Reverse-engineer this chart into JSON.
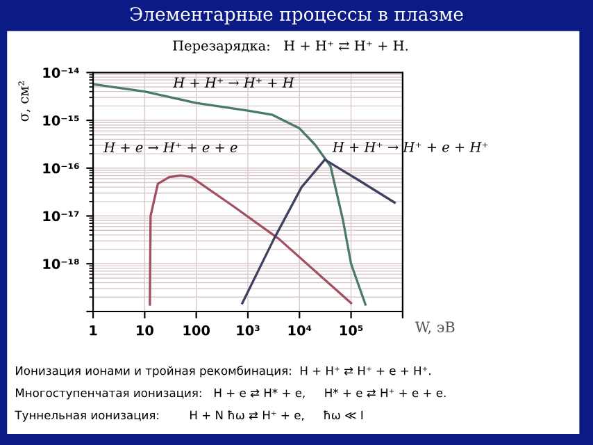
{
  "chart_data": {
    "type": "line",
    "title": "Элементарные процессы в плазме",
    "subtitle": "Перезарядка:   H + H⁺ ⇄ H⁺ + H.",
    "xlabel": "W, эВ",
    "ylabel": "σ, см²",
    "log": "xy",
    "grid": true,
    "legend": false,
    "marker": "none",
    "line_style": "solid",
    "xlim": [
      1,
      1000000
    ],
    "ylim": [
      1e-19,
      1e-14
    ],
    "xticks": [
      1,
      10,
      100,
      {
        "value": 1000,
        "label": "10³"
      },
      {
        "value": 10000,
        "label": "10⁴"
      },
      {
        "value": 100000,
        "label": "10⁵"
      },
      {
        "value": 1000000,
        "label": null
      }
    ],
    "yticks": [
      {
        "value": 1e-19,
        "label": null
      },
      {
        "value": 1e-18,
        "label": "10⁻¹⁸"
      },
      {
        "value": 1e-17,
        "label": "10⁻¹⁷"
      },
      {
        "value": 1e-16,
        "label": "10⁻¹⁶"
      },
      {
        "value": 1e-15,
        "label": "10⁻¹⁵"
      },
      {
        "value": 1e-14,
        "label": "10⁻¹⁴"
      }
    ],
    "series": [
      {
        "name": "H + H⁺ → H⁺ + H",
        "color": "#4a7a6a",
        "x": [
          1,
          10,
          100,
          1000,
          3000,
          10000,
          20000,
          40000,
          70000,
          100000,
          190000
        ],
        "values": [
          5.7e-15,
          4e-15,
          2.3e-15,
          1.6e-15,
          1.3e-15,
          6.8e-16,
          3.1e-16,
          1.1e-16,
          8e-18,
          1e-18,
          1.4e-19
        ]
      },
      {
        "name": "H + e → H⁺ + e + e",
        "color": "#a05060",
        "x": [
          12.6,
          13,
          18,
          30,
          50,
          80,
          520,
          4000,
          100000
        ],
        "values": [
          1.4e-19,
          1e-17,
          4.7e-17,
          6.5e-17,
          7e-17,
          6.5e-17,
          1.6e-17,
          3.3e-18,
          1.5e-19
        ]
      },
      {
        "name": "H + H⁺ → H⁺ + e + H⁺",
        "color": "#404060",
        "x": [
          780,
          3200,
          11000,
          31000,
          126000,
          700000
        ],
        "values": [
          1.5e-19,
          3.3e-18,
          4e-17,
          1.5e-16,
          6e-17,
          1.9e-17
        ]
      }
    ],
    "annotations": [
      "Ионизация ионами и тройная рекомбинация:  H + H⁺ ⇄ H⁺ + e + H⁺.",
      "Многоступенчатая ионизация:   H + e ⇄ H* + e,     H* + e ⇄ H⁺ + e + e.",
      "Туннельная ионизация:        H + N ħω ⇄ H⁺ + e,     ħω ≪ I"
    ]
  }
}
